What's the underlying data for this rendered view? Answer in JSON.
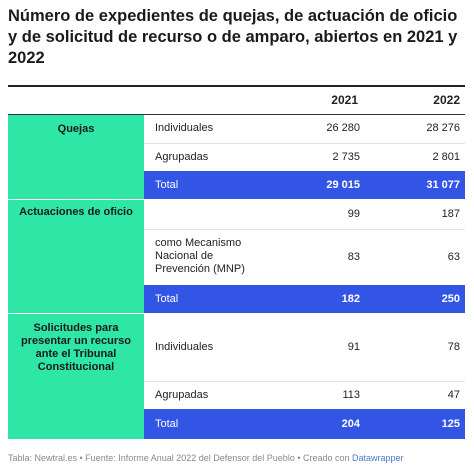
{
  "title": "Número de expedientes de quejas, de actuación de oficio y de solicitud de recurso o de amparo, abiertos en 2021 y 2022",
  "columns": [
    "2021",
    "2022"
  ],
  "groups": [
    {
      "label": "Quejas"
    },
    {
      "label": "Actuaciones de oficio"
    },
    {
      "label": "Solicitudes para presentar un recurso ante el Tribunal Constitucional"
    }
  ],
  "rows": [
    {
      "group": "Quejas",
      "label": "Individuales",
      "v2021": "26 280",
      "v2022": "28 276"
    },
    {
      "group": "Quejas",
      "label": "Agrupadas",
      "v2021": "2 735",
      "v2022": "2 801"
    },
    {
      "group": "Quejas",
      "label": "Total",
      "v2021": "29 015",
      "v2022": "31 077"
    },
    {
      "group": "Actuaciones de oficio",
      "label": "",
      "v2021": "99",
      "v2022": "187"
    },
    {
      "group": "Actuaciones de oficio",
      "label": "como Mecanismo Nacional de Prevención (MNP)",
      "v2021": "83",
      "v2022": "63"
    },
    {
      "group": "Actuaciones de oficio",
      "label": "Total",
      "v2021": "182",
      "v2022": "250"
    },
    {
      "group": "Solicitudes para presentar un recurso ante el Tribunal Constitucional",
      "label": "Individuales",
      "v2021": "91",
      "v2022": "78"
    },
    {
      "group": "Solicitudes para presentar un recurso ante el Tribunal Constitucional",
      "label": "Agrupadas",
      "v2021": "113",
      "v2022": "47"
    },
    {
      "group": "Solicitudes para presentar un recurso ante el Tribunal Constitucional",
      "label": "Total",
      "v2021": "204",
      "v2022": "125"
    }
  ],
  "footer": {
    "text": "Tabla: Newtral.es • Fuente: Informe Anual 2022 del Defensor del Pueblo • Creado con ",
    "link": "Datawrapper"
  },
  "colors": {
    "group_bg": "#2ee6a6",
    "total_bg": "#3355e6"
  },
  "chart_data": {
    "type": "table",
    "title": "Número de expedientes de quejas, de actuación de oficio y de solicitud de recurso o de amparo, abiertos en 2021 y 2022",
    "columns": [
      "",
      "",
      "2021",
      "2022"
    ],
    "rows": [
      [
        "Quejas",
        "Individuales",
        26280,
        28276
      ],
      [
        "Quejas",
        "Agrupadas",
        2735,
        2801
      ],
      [
        "Quejas",
        "Total",
        29015,
        31077
      ],
      [
        "Actuaciones de oficio",
        "",
        99,
        187
      ],
      [
        "Actuaciones de oficio",
        "como Mecanismo Nacional de Prevención (MNP)",
        83,
        63
      ],
      [
        "Actuaciones de oficio",
        "Total",
        182,
        250
      ],
      [
        "Solicitudes para presentar un recurso ante el Tribunal Constitucional",
        "Individuales",
        91,
        78
      ],
      [
        "Solicitudes para presentar un recurso ante el Tribunal Constitucional",
        "Agrupadas",
        113,
        47
      ],
      [
        "Solicitudes para presentar un recurso ante el Tribunal Constitucional",
        "Total",
        204,
        125
      ]
    ]
  }
}
